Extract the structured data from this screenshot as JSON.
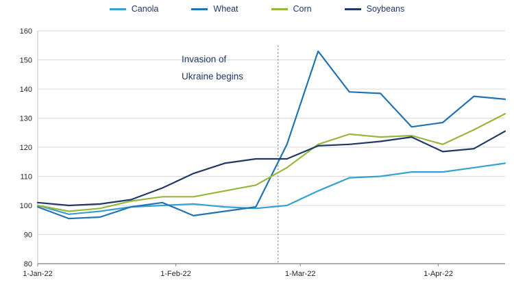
{
  "chart_data": {
    "type": "line",
    "title": "",
    "x_tick_labels": [
      "1-Jan-22",
      "1-Feb-22",
      "1-Mar-22",
      "1-Apr-22"
    ],
    "x_tick_days": [
      0,
      31,
      59,
      90
    ],
    "x_days": [
      0,
      7,
      14,
      21,
      28,
      35,
      42,
      49,
      56,
      63,
      70,
      77,
      84,
      91,
      98,
      105
    ],
    "ylim": [
      80,
      160
    ],
    "y_ticks": [
      160,
      150,
      140,
      130,
      120,
      110,
      100,
      90,
      80
    ],
    "grid": "horizontal",
    "legend_position": "top",
    "series": [
      {
        "name": "Canola",
        "color": "#35A0D4",
        "values": [
          100,
          97,
          98,
          99.5,
          100,
          100.5,
          99.5,
          99,
          100,
          105,
          109.5,
          110,
          111.5,
          111.5,
          113,
          114.5
        ]
      },
      {
        "name": "Wheat",
        "color": "#2272B4",
        "values": [
          99.5,
          95.5,
          96,
          99.5,
          101,
          96.5,
          98,
          99.5,
          121,
          153,
          139,
          138.5,
          127,
          128.5,
          137.5,
          136.5
        ]
      },
      {
        "name": "Corn",
        "color": "#97B63D",
        "values": [
          100,
          98,
          99,
          101.5,
          103,
          103,
          105,
          107,
          113,
          121,
          124.5,
          123.5,
          124,
          121,
          126,
          131.5
        ]
      },
      {
        "name": "Soybeans",
        "color": "#203864",
        "values": [
          101,
          100,
          100.5,
          102,
          106,
          111,
          114.5,
          116,
          116,
          120.5,
          121,
          122,
          123.5,
          118.5,
          119.5,
          125.5
        ]
      }
    ],
    "annotation": {
      "line1": "Invasion of",
      "line2": "Ukraine begins",
      "event_day": 54
    }
  }
}
